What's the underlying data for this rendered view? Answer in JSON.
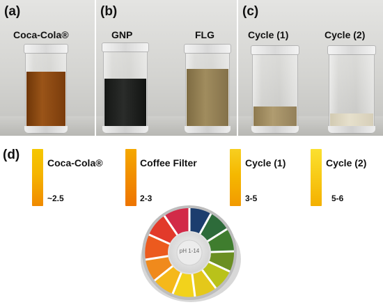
{
  "panels": [
    {
      "letter": "(a)",
      "captions": [
        "Coca-Cola®"
      ]
    },
    {
      "letter": "(b)",
      "captions": [
        "GNP",
        "FLG"
      ]
    },
    {
      "letter": "(c)",
      "captions": [
        "Cycle (1)",
        "Cycle (2)"
      ]
    }
  ],
  "strips_section": {
    "letter": "(d)",
    "strips": [
      {
        "label": "Coca-Cola®",
        "ph": "~2.5",
        "color_top": "#f5c700",
        "color_bottom": "#f08a00"
      },
      {
        "label": "Coffee Filter",
        "ph": "2-3",
        "color_top": "#f5a800",
        "color_bottom": "#f07a00"
      },
      {
        "label": "Cycle (1)",
        "ph": "3-5",
        "color_top": "#f7cf20",
        "color_bottom": "#f29a00"
      },
      {
        "label": "Cycle (2)",
        "ph": "5-6",
        "color_top": "#fbe030",
        "color_bottom": "#f4b000"
      }
    ]
  },
  "ph_roll": {
    "label": "pH 1-14"
  },
  "liquid_colors": {
    "cola": "#8a4a14",
    "gnp": "#1c1e1c",
    "flg": "#8e7a4e",
    "cycle1": "#a08c60",
    "cycle2": "#ddd6c0"
  }
}
